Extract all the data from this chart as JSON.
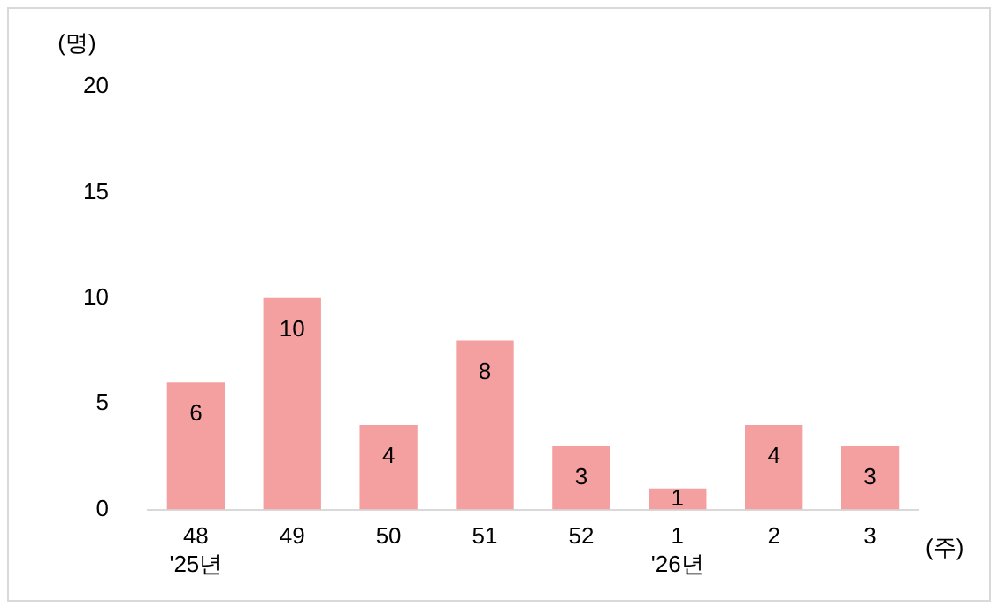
{
  "chart_data": {
    "type": "bar",
    "ylabel": "(명)",
    "xlabel": "(주)",
    "categories": [
      "48\n'25년",
      "49",
      "50",
      "51",
      "52",
      "1\n'26년",
      "2",
      "3"
    ],
    "values": [
      6,
      10,
      4,
      8,
      3,
      1,
      4,
      3
    ],
    "color": "#f4a0a0",
    "ylim": [
      0,
      20
    ],
    "yticks": [
      0,
      5,
      10,
      15,
      20
    ],
    "grid": false,
    "legend": false,
    "data_labels": true
  }
}
